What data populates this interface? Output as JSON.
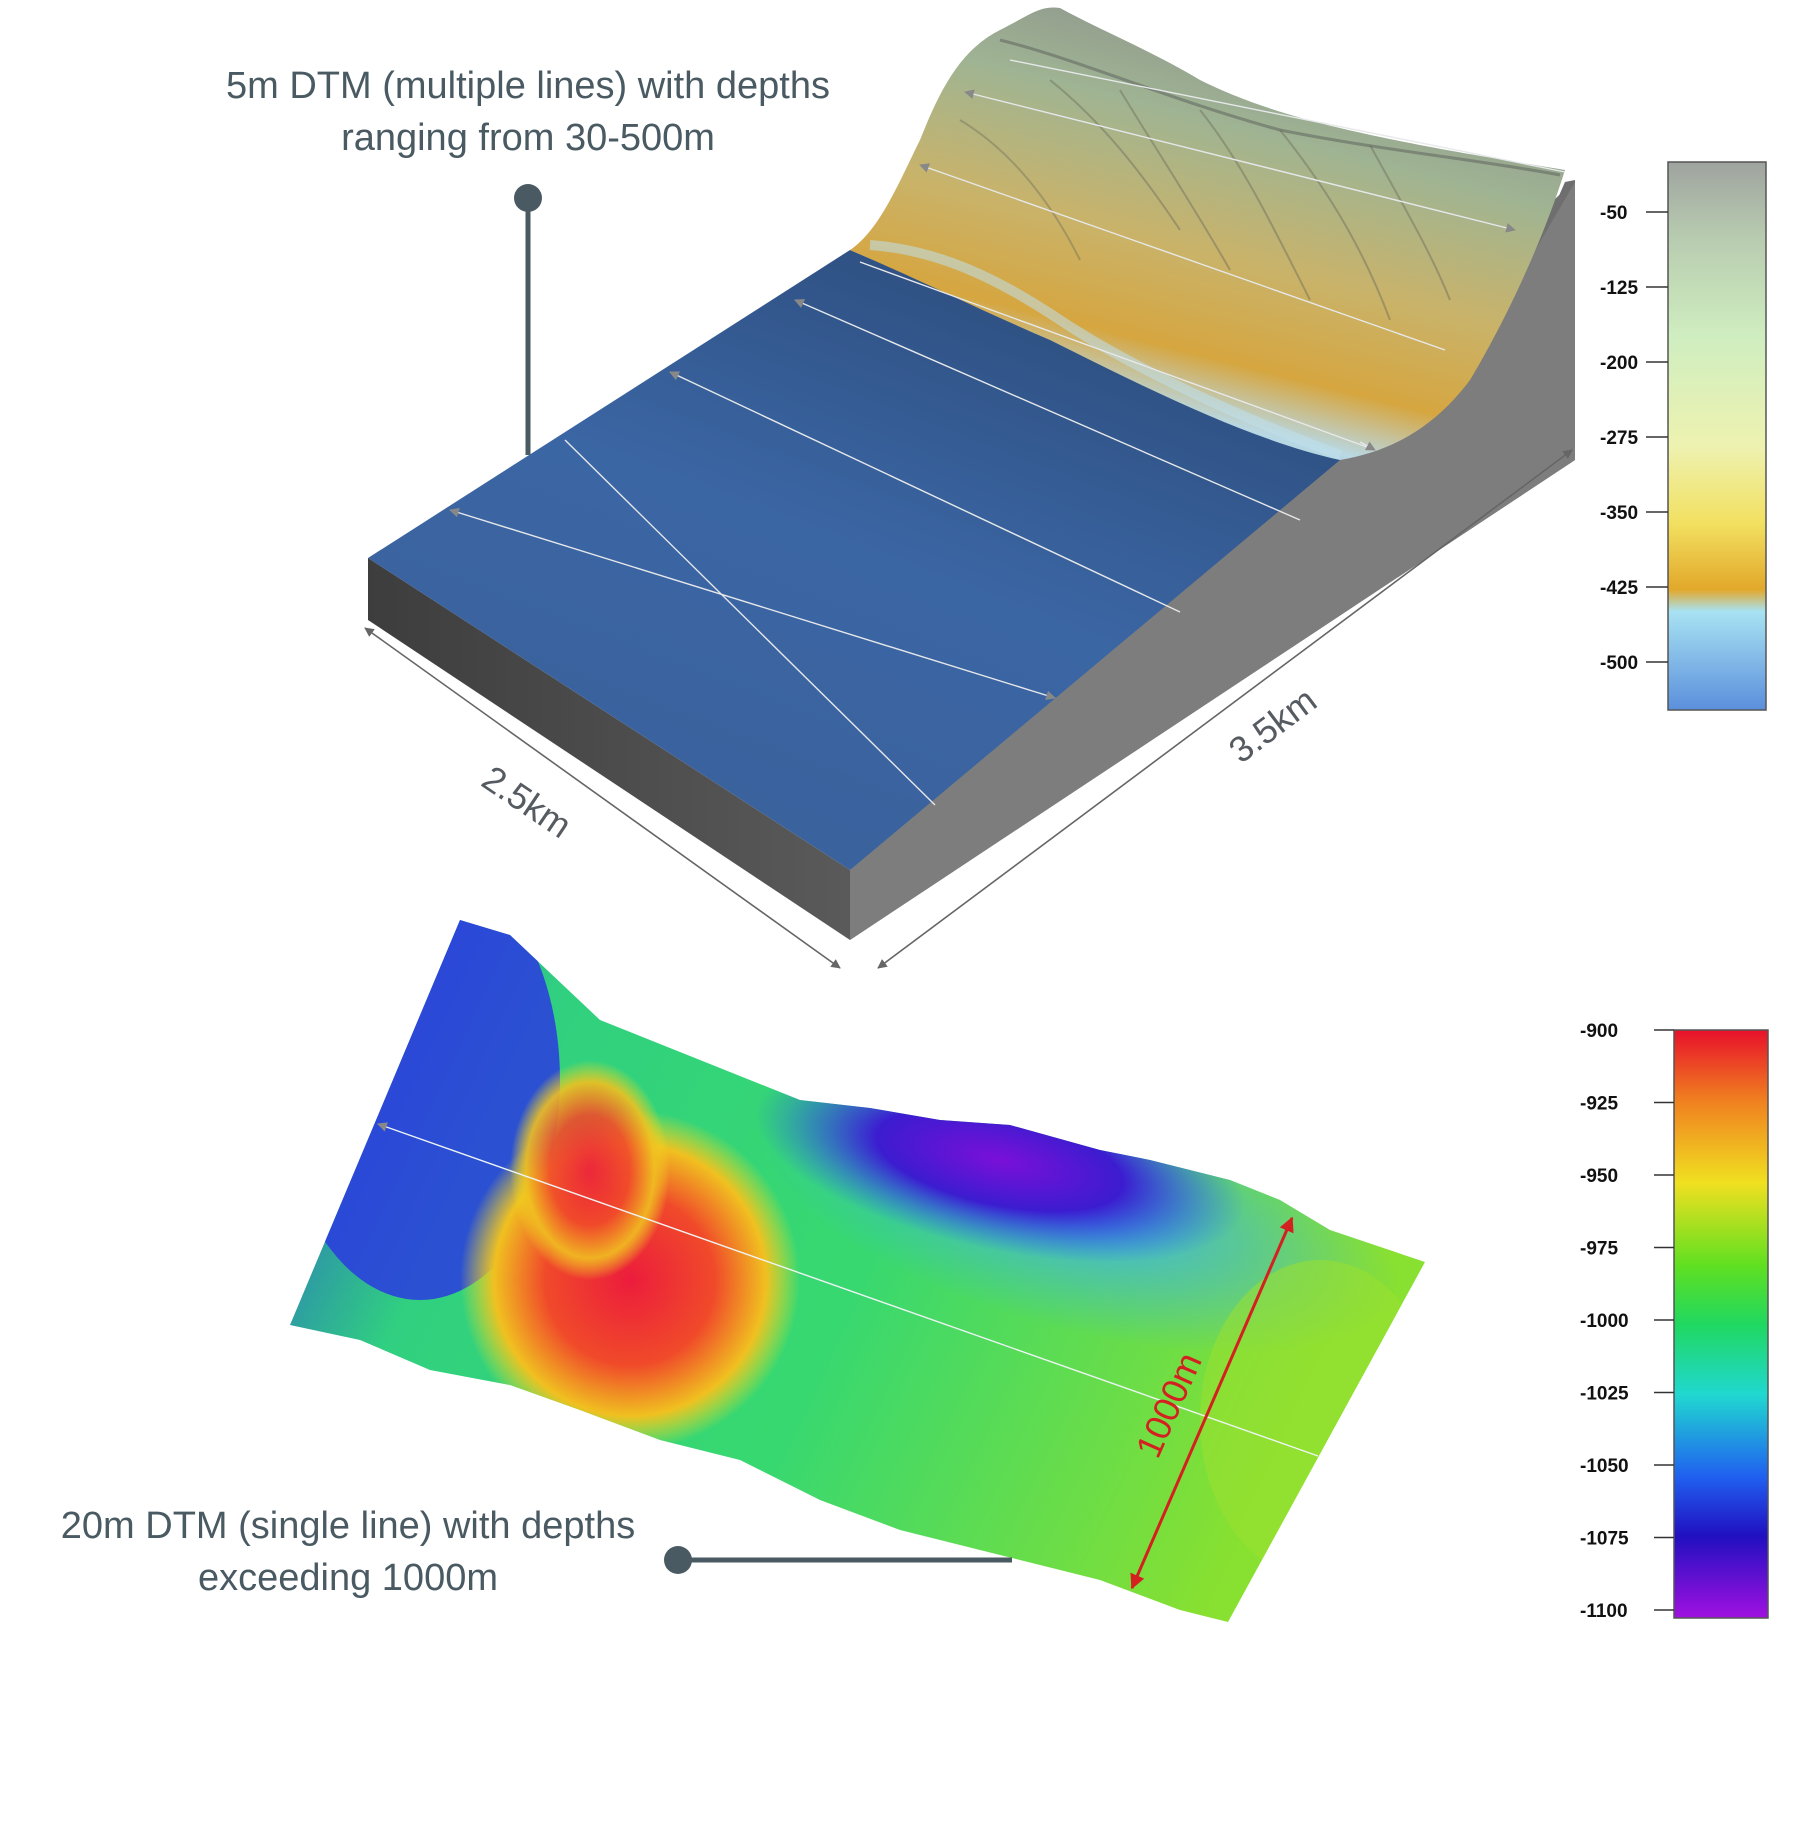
{
  "callouts": {
    "top_line1": "5m DTM (multiple lines) with depths",
    "top_line2": "ranging from 30-500m",
    "bottom_line1": "20m DTM (single line) with depths",
    "bottom_line2": "exceeding 1000m"
  },
  "dimensions": {
    "width_top": "2.5km",
    "length_top": "3.5km",
    "width_bottom": "1000m"
  },
  "scale_top": {
    "ticks": [
      "-50",
      "-125",
      "-200",
      "-275",
      "-350",
      "-425",
      "-500"
    ],
    "colors": [
      "#9fa39f",
      "#b8ccb0",
      "#cfeec0",
      "#eef2b0",
      "#f2e060",
      "#e2a82a",
      "#a8e2f2",
      "#5b8fdc"
    ]
  },
  "scale_bottom": {
    "ticks": [
      "-900",
      "-925",
      "-950",
      "-975",
      "-1000",
      "-1025",
      "-1050",
      "-1075",
      "-1100"
    ],
    "colors": [
      "#e8102a",
      "#f08020",
      "#f0e020",
      "#60e020",
      "#20d860",
      "#20d8d0",
      "#2060f0",
      "#2010c0",
      "#a010e0"
    ]
  }
}
